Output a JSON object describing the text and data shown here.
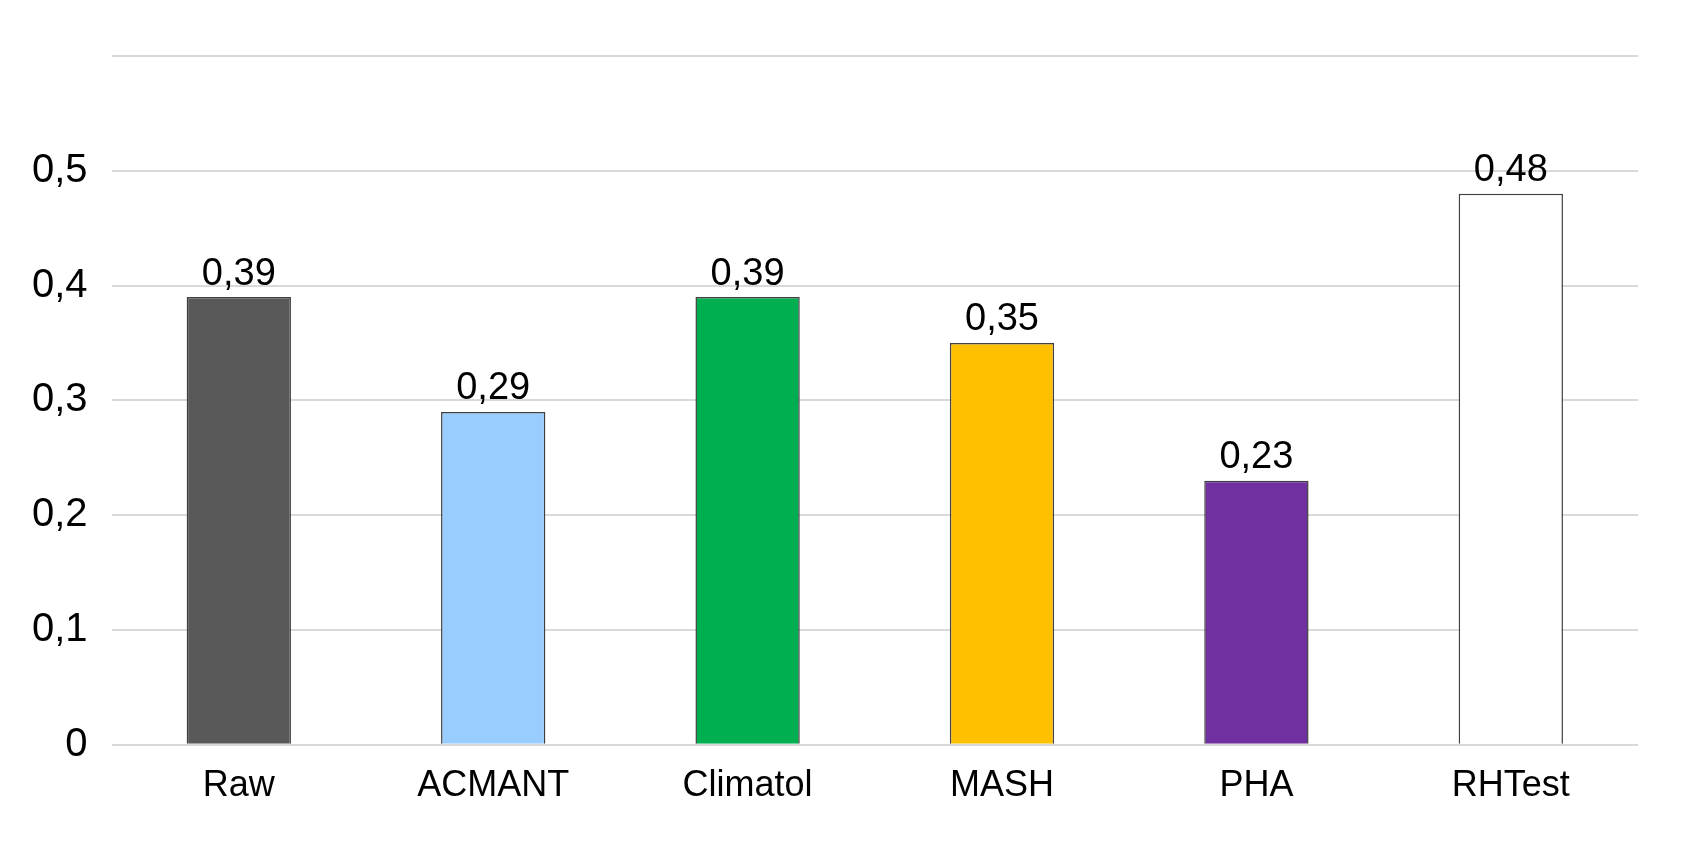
{
  "chart_data": {
    "type": "bar",
    "categories": [
      "Raw",
      "ACMANT",
      "Climatol",
      "MASH",
      "PHA",
      "RHTest"
    ],
    "values": [
      0.39,
      0.29,
      0.39,
      0.35,
      0.23,
      0.48
    ],
    "colors": [
      "#595959",
      "#99ccff",
      "#00b050",
      "#ffc000",
      "#7030a0",
      "#ffffff"
    ],
    "value_labels": [
      "0,39",
      "0,29",
      "0,39",
      "0,35",
      "0,23",
      "0,48"
    ],
    "ylim": [
      0,
      0.6
    ],
    "yticks": [
      {
        "value": 0,
        "label": "0"
      },
      {
        "value": 0.1,
        "label": "0,1"
      },
      {
        "value": 0.2,
        "label": "0,2"
      },
      {
        "value": 0.3,
        "label": "0,3"
      },
      {
        "value": 0.4,
        "label": "0,4"
      },
      {
        "value": 0.5,
        "label": "0,5"
      },
      {
        "value": 0.6,
        "label": null
      }
    ],
    "grid": "y",
    "legend": false
  }
}
